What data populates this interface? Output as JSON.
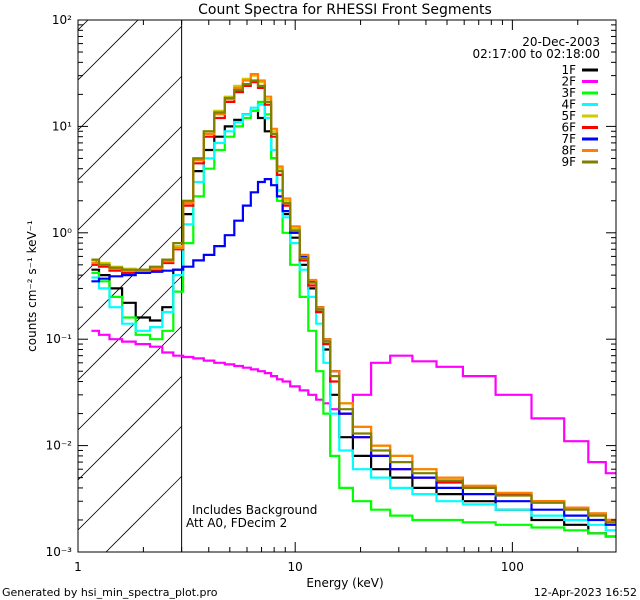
{
  "chart_data": {
    "type": "line",
    "title": "Count Spectra for RHESSI Front Segments",
    "xlabel": "Energy (keV)",
    "ylabel": "counts cm⁻² s⁻¹ keV⁻¹",
    "xscale": "log",
    "yscale": "log",
    "xlim": [
      1,
      300
    ],
    "ylim": [
      0.001,
      100
    ],
    "x_tick_labels": [
      "1",
      "10",
      "100"
    ],
    "y_tick_labels": [
      "10⁻³",
      "10⁻²",
      "10⁻¹",
      "10⁰",
      "10¹",
      "10²"
    ],
    "date": "20-Dec-2003",
    "time_range": "02:17:00 to 02:18:00",
    "annotation_lines": [
      "Includes Background",
      "Att A0, FDecim 2"
    ],
    "footer_left": "Generated by hsi_min_spectra_plot.pro",
    "footer_right": "12-Apr-2023 16:52",
    "excluded_region_keV": [
      1,
      3
    ],
    "x": [
      1.2,
      1.3,
      1.5,
      1.7,
      2.0,
      2.3,
      2.6,
      2.9,
      3.2,
      3.6,
      4.0,
      4.5,
      5.0,
      5.5,
      6.0,
      6.5,
      7.0,
      7.5,
      8.0,
      8.5,
      9.0,
      10.0,
      11.0,
      12.0,
      13.0,
      14.0,
      15.0,
      17.0,
      20.0,
      25.0,
      30.0,
      40.0,
      50.0,
      70.0,
      100.0,
      150.0,
      200.0,
      250.0,
      290.0
    ],
    "series": [
      {
        "name": "1F",
        "color": "#000000",
        "values": [
          0.45,
          0.4,
          0.3,
          0.22,
          0.16,
          0.15,
          0.2,
          0.45,
          1.5,
          3.8,
          6.0,
          8.0,
          10.0,
          11.5,
          13.0,
          14.0,
          12.0,
          9.0,
          5.0,
          2.5,
          1.5,
          0.9,
          0.5,
          0.3,
          0.18,
          0.08,
          0.03,
          0.012,
          0.008,
          0.006,
          0.005,
          0.004,
          0.0035,
          0.003,
          0.0025,
          0.002,
          0.0018,
          0.0015,
          0.0014
        ]
      },
      {
        "name": "2F",
        "color": "#ff00ff",
        "values": [
          0.12,
          0.11,
          0.1,
          0.095,
          0.09,
          0.085,
          0.075,
          0.07,
          0.068,
          0.066,
          0.063,
          0.06,
          0.058,
          0.056,
          0.054,
          0.052,
          0.05,
          0.048,
          0.045,
          0.042,
          0.04,
          0.036,
          0.033,
          0.03,
          0.027,
          0.025,
          0.022,
          0.02,
          0.03,
          0.06,
          0.07,
          0.062,
          0.055,
          0.045,
          0.03,
          0.018,
          0.011,
          0.007,
          0.0055
        ]
      },
      {
        "name": "3F",
        "color": "#00ff00",
        "values": [
          0.42,
          0.35,
          0.25,
          0.16,
          0.11,
          0.1,
          0.12,
          0.28,
          0.8,
          2.2,
          4.0,
          6.0,
          8.0,
          10.0,
          12.0,
          14.0,
          17.0,
          13.0,
          5.0,
          2.0,
          1.0,
          0.5,
          0.25,
          0.12,
          0.05,
          0.02,
          0.008,
          0.004,
          0.003,
          0.0025,
          0.0022,
          0.002,
          0.002,
          0.0019,
          0.0018,
          0.0017,
          0.0016,
          0.0015,
          0.0014
        ]
      },
      {
        "name": "4F",
        "color": "#00ffff",
        "values": [
          0.38,
          0.3,
          0.2,
          0.14,
          0.12,
          0.13,
          0.18,
          0.4,
          1.2,
          3.0,
          5.0,
          7.0,
          9.0,
          11.0,
          13.0,
          15.0,
          16.0,
          12.0,
          6.0,
          2.5,
          1.4,
          0.8,
          0.45,
          0.25,
          0.14,
          0.06,
          0.02,
          0.009,
          0.006,
          0.005,
          0.004,
          0.0035,
          0.003,
          0.0028,
          0.0025,
          0.0022,
          0.002,
          0.0018,
          0.0016
        ]
      },
      {
        "name": "5F",
        "color": "#cccc00",
        "values": [
          0.55,
          0.52,
          0.48,
          0.46,
          0.45,
          0.47,
          0.55,
          0.75,
          2.0,
          5.0,
          9.0,
          14.0,
          19.0,
          24.0,
          28.0,
          30.0,
          26.0,
          18.0,
          9.0,
          4.0,
          2.0,
          1.1,
          0.6,
          0.35,
          0.2,
          0.1,
          0.05,
          0.025,
          0.015,
          0.01,
          0.008,
          0.006,
          0.005,
          0.004,
          0.0035,
          0.003,
          0.0026,
          0.0023,
          0.002
        ]
      },
      {
        "name": "6F",
        "color": "#ff0000",
        "values": [
          0.5,
          0.48,
          0.44,
          0.42,
          0.42,
          0.44,
          0.52,
          0.7,
          1.8,
          4.5,
          8.0,
          12.0,
          17.0,
          21.0,
          24.0,
          26.0,
          23.0,
          16.0,
          8.0,
          3.5,
          1.8,
          1.0,
          0.55,
          0.32,
          0.18,
          0.09,
          0.04,
          0.02,
          0.012,
          0.008,
          0.006,
          0.005,
          0.0045,
          0.004,
          0.0035,
          0.003,
          0.0026,
          0.0023,
          0.002
        ]
      },
      {
        "name": "7F",
        "color": "#0000ff",
        "values": [
          0.35,
          0.37,
          0.39,
          0.4,
          0.42,
          0.43,
          0.44,
          0.45,
          0.48,
          0.55,
          0.62,
          0.75,
          0.95,
          1.3,
          1.8,
          2.4,
          3.0,
          3.2,
          2.8,
          2.2,
          1.6,
          1.0,
          0.6,
          0.35,
          0.2,
          0.1,
          0.05,
          0.02,
          0.012,
          0.008,
          0.006,
          0.005,
          0.004,
          0.0035,
          0.003,
          0.0025,
          0.0022,
          0.002,
          0.0018
        ]
      },
      {
        "name": "8F",
        "color": "#ff8000",
        "values": [
          0.52,
          0.5,
          0.46,
          0.44,
          0.44,
          0.46,
          0.54,
          0.72,
          1.9,
          4.8,
          8.5,
          13.0,
          18.0,
          23.0,
          27.0,
          31.0,
          27.0,
          19.0,
          9.5,
          4.2,
          2.1,
          1.15,
          0.62,
          0.36,
          0.2,
          0.1,
          0.05,
          0.025,
          0.015,
          0.01,
          0.008,
          0.006,
          0.005,
          0.0042,
          0.0036,
          0.003,
          0.0026,
          0.0023,
          0.002
        ]
      },
      {
        "name": "9F",
        "color": "#808000",
        "values": [
          0.56,
          0.5,
          0.47,
          0.45,
          0.45,
          0.48,
          0.56,
          0.8,
          2.0,
          5.0,
          9.0,
          13.5,
          18.5,
          22.0,
          25.0,
          27.0,
          24.0,
          17.0,
          8.5,
          3.8,
          1.9,
          1.05,
          0.58,
          0.34,
          0.19,
          0.095,
          0.045,
          0.022,
          0.013,
          0.009,
          0.007,
          0.0055,
          0.0047,
          0.004,
          0.0034,
          0.0029,
          0.0025,
          0.0022,
          0.0019
        ]
      }
    ]
  }
}
